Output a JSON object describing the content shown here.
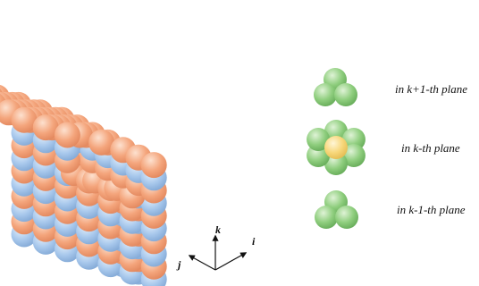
{
  "labels": {
    "plane_above": "in k+1-th plane",
    "plane_current": "in k-th plane",
    "plane_below": "in k-1-th plane"
  },
  "axes": {
    "k": "k",
    "i": "i",
    "j": "j"
  },
  "colors": {
    "orange_atom": "#f4a57c",
    "blue_atom": "#a8c8ec",
    "green_atom": "#8fce7e",
    "center_atom": "#f7d77a"
  }
}
